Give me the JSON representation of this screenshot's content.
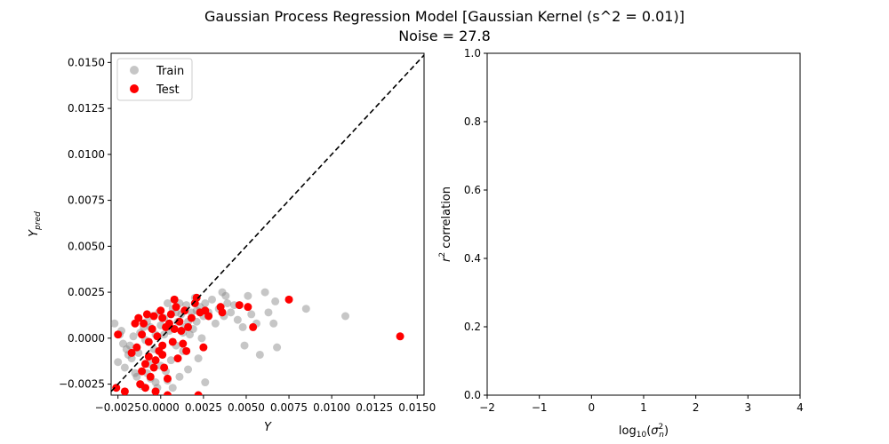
{
  "figure": {
    "title_line1": "Gaussian Process Regression Model [Gaussian Kernel (s^2 = 0.01)]",
    "title_line2": "Noise = 27.8"
  },
  "chart_data": [
    {
      "type": "scatter",
      "xlabel": "Y",
      "ylabel": "Y_pred",
      "xlim": [
        -0.0029,
        0.0154
      ],
      "ylim": [
        -0.0031,
        0.0155
      ],
      "xticks": [
        -0.0025,
        0.0,
        0.0025,
        0.005,
        0.0075,
        0.01,
        0.0125,
        0.015
      ],
      "xtick_labels": [
        "−0.0025",
        "0.0000",
        "0.0025",
        "0.0050",
        "0.0075",
        "0.0100",
        "0.0125",
        "0.0150"
      ],
      "yticks": [
        -0.0025,
        0.0,
        0.0025,
        0.005,
        0.0075,
        0.01,
        0.0125,
        0.015
      ],
      "ytick_labels": [
        "−0.0025",
        "0.0000",
        "0.0025",
        "0.0050",
        "0.0075",
        "0.0100",
        "0.0125",
        "0.0150"
      ],
      "identity_line": true,
      "legend": {
        "placement": "upper-left",
        "entries": [
          "Train",
          "Test"
        ]
      },
      "series": [
        {
          "name": "Train",
          "color": "#808080",
          "alpha": 0.45,
          "points": [
            [
              -0.0027,
              0.0008
            ],
            [
              -0.0024,
              0.0002
            ],
            [
              -0.0022,
              -0.0003
            ],
            [
              -0.002,
              -0.0006
            ],
            [
              -0.0018,
              -0.0004
            ],
            [
              -0.0025,
              -0.0013
            ],
            [
              -0.0021,
              -0.0016
            ],
            [
              -0.0017,
              -0.0011
            ],
            [
              -0.0015,
              -0.0019
            ],
            [
              -0.0013,
              -0.0008
            ],
            [
              -0.0012,
              0.0003
            ],
            [
              -0.001,
              0.0006
            ],
            [
              -0.0009,
              -0.0001
            ],
            [
              -0.0008,
              0.0009
            ],
            [
              -0.0007,
              -0.0014
            ],
            [
              -0.0006,
              -0.0022
            ],
            [
              -0.0005,
              0.0012
            ],
            [
              -0.0004,
              -0.0006
            ],
            [
              -0.0003,
              0.0002
            ],
            [
              -0.0002,
              -0.0027
            ],
            [
              -0.0001,
              0.0014
            ],
            [
              0.0,
              0.0007
            ],
            [
              0.0001,
              -0.0009
            ],
            [
              0.0002,
              0.0011
            ],
            [
              0.0003,
              -0.0018
            ],
            [
              0.0004,
              0.0019
            ],
            [
              0.0005,
              0.0004
            ],
            [
              0.0006,
              -0.0012
            ],
            [
              0.0007,
              0.0016
            ],
            [
              0.0008,
              0.0021
            ],
            [
              0.0009,
              -0.0004
            ],
            [
              0.001,
              0.0009
            ],
            [
              0.0011,
              -0.0021
            ],
            [
              0.0012,
              0.0013
            ],
            [
              0.0013,
              -0.0007
            ],
            [
              0.0014,
              0.0006
            ],
            [
              0.0015,
              0.0018
            ],
            [
              0.0016,
              -0.0017
            ],
            [
              0.0017,
              0.0002
            ],
            [
              0.0018,
              0.0014
            ],
            [
              0.002,
              0.0022
            ],
            [
              0.0021,
              0.0009
            ],
            [
              0.0022,
              -0.0011
            ],
            [
              0.0023,
              0.0017
            ],
            [
              0.0024,
              0.0
            ],
            [
              0.0025,
              0.0012
            ],
            [
              0.0026,
              0.0019
            ],
            [
              0.0028,
              0.0014
            ],
            [
              0.003,
              0.0021
            ],
            [
              0.0032,
              0.0008
            ],
            [
              0.0034,
              0.0016
            ],
            [
              0.0036,
              0.0025
            ],
            [
              0.0037,
              0.0012
            ],
            [
              0.0038,
              0.0023
            ],
            [
              0.0041,
              0.0014
            ],
            [
              0.0043,
              0.0018
            ],
            [
              0.0045,
              0.001
            ],
            [
              0.0048,
              0.0006
            ],
            [
              0.0049,
              -0.0004
            ],
            [
              0.0051,
              0.0023
            ],
            [
              0.0053,
              0.0013
            ],
            [
              0.0056,
              0.0008
            ],
            [
              0.0058,
              -0.0009
            ],
            [
              0.0061,
              0.0025
            ],
            [
              0.0063,
              0.0014
            ],
            [
              0.0067,
              0.002
            ],
            [
              0.0068,
              -0.0005
            ],
            [
              0.0085,
              0.0016
            ],
            [
              0.0108,
              0.0012
            ],
            [
              -0.0003,
              -0.0024
            ],
            [
              -0.0011,
              -0.0026
            ],
            [
              -0.0016,
              0.0001
            ],
            [
              0.0,
              -0.0015
            ],
            [
              0.0004,
              -0.0023
            ],
            [
              -0.0006,
              0.0006
            ],
            [
              0.0009,
              0.0014
            ],
            [
              0.0013,
              0.0003
            ],
            [
              -0.0019,
              -0.0009
            ],
            [
              0.0019,
              0.0005
            ],
            [
              0.0026,
              -0.0024
            ],
            [
              -0.0023,
              0.0004
            ],
            [
              -0.0008,
              -0.0019
            ],
            [
              0.0002,
              0.0002
            ],
            [
              0.0016,
              0.0009
            ],
            [
              0.0039,
              0.0019
            ],
            [
              0.0066,
              0.0008
            ],
            [
              -0.0014,
              -0.0021
            ],
            [
              0.0007,
              -0.0027
            ],
            [
              0.0021,
              0.0015
            ],
            [
              0.0011,
              0.0019
            ]
          ]
        },
        {
          "name": "Test",
          "color": "#ff0000",
          "alpha": 1,
          "points": [
            [
              -0.0026,
              -0.0027
            ],
            [
              -0.0025,
              0.0002
            ],
            [
              -0.0021,
              -0.0029
            ],
            [
              -0.0017,
              -0.0008
            ],
            [
              -0.0015,
              0.0008
            ],
            [
              -0.0013,
              0.0011
            ],
            [
              -0.0012,
              -0.0025
            ],
            [
              -0.0011,
              -0.0018
            ],
            [
              -0.0011,
              0.0002
            ],
            [
              -0.001,
              0.0008
            ],
            [
              -0.0009,
              -0.0014
            ],
            [
              -0.0009,
              -0.0027
            ],
            [
              -0.0008,
              0.0013
            ],
            [
              -0.0007,
              -0.0002
            ],
            [
              -0.0007,
              -0.001
            ],
            [
              -0.0006,
              -0.0021
            ],
            [
              -0.0005,
              0.0005
            ],
            [
              -0.0004,
              0.0012
            ],
            [
              -0.0004,
              -0.0016
            ],
            [
              -0.0003,
              -0.0029
            ],
            [
              -0.0002,
              0.0001
            ],
            [
              -0.0001,
              -0.0007
            ],
            [
              0.0,
              0.0015
            ],
            [
              0.0001,
              -0.0004
            ],
            [
              0.0001,
              -0.0009
            ],
            [
              0.0002,
              -0.0016
            ],
            [
              0.0003,
              0.0006
            ],
            [
              0.0004,
              -0.0031
            ],
            [
              0.0005,
              0.0008
            ],
            [
              0.0006,
              0.0013
            ],
            [
              0.0007,
              -0.0002
            ],
            [
              0.0008,
              0.0021
            ],
            [
              0.0008,
              0.0005
            ],
            [
              0.0009,
              0.0017
            ],
            [
              0.001,
              -0.0011
            ],
            [
              0.0011,
              0.0009
            ],
            [
              0.0012,
              0.0004
            ],
            [
              0.0013,
              -0.0003
            ],
            [
              0.0014,
              0.0015
            ],
            [
              0.0015,
              -0.0007
            ],
            [
              0.0016,
              0.0006
            ],
            [
              0.0018,
              0.0011
            ],
            [
              0.002,
              0.0019
            ],
            [
              0.0021,
              0.0022
            ],
            [
              0.0022,
              -0.0031
            ],
            [
              0.0023,
              0.0014
            ],
            [
              0.0025,
              -0.0005
            ],
            [
              0.0026,
              0.0015
            ],
            [
              0.0028,
              0.0012
            ],
            [
              0.0035,
              0.0017
            ],
            [
              0.0036,
              0.0014
            ],
            [
              0.0046,
              0.0018
            ],
            [
              0.0051,
              0.0017
            ],
            [
              0.0054,
              0.0006
            ],
            [
              0.0075,
              0.0021
            ],
            [
              0.014,
              0.0001
            ],
            [
              -0.0003,
              -0.0012
            ],
            [
              0.0004,
              -0.0022
            ],
            [
              -0.0014,
              -0.0005
            ],
            [
              0.0001,
              0.0011
            ]
          ]
        }
      ]
    },
    {
      "type": "scatter",
      "xlabel": "log10(σn²)",
      "ylabel": "r² correlation",
      "xlim": [
        -2,
        4
      ],
      "ylim": [
        0,
        1
      ],
      "xticks": [
        -2,
        -1,
        0,
        1,
        2,
        3,
        4
      ],
      "xtick_labels": [
        "−2",
        "−1",
        "0",
        "1",
        "2",
        "3",
        "4"
      ],
      "yticks": [
        0,
        0.2,
        0.4,
        0.6,
        0.8,
        1.0
      ],
      "ytick_labels": [
        "0.0",
        "0.2",
        "0.4",
        "0.6",
        "0.8",
        "1.0"
      ],
      "series": []
    }
  ]
}
